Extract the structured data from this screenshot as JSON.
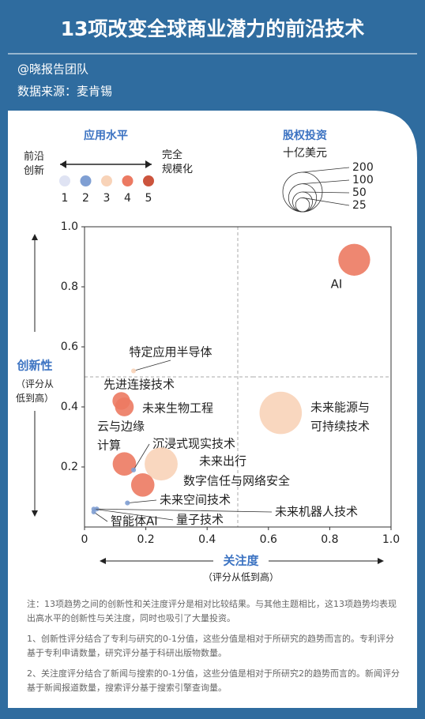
{
  "header": {
    "title": "13项改变全球商业潜力的前沿技术",
    "author": "@晓报告团队",
    "source": "数据来源：麦肯锡"
  },
  "chart_data": {
    "type": "bubble",
    "color_legend": {
      "title": "应用水平",
      "low": "前沿\n创新",
      "high": "完全\n规模化",
      "levels": [
        1,
        2,
        3,
        4,
        5
      ],
      "colors": [
        "#dfe3f3",
        "#7f9fd3",
        "#f8d3b8",
        "#ec7a62",
        "#cc543d"
      ]
    },
    "size_legend": {
      "title": "股权投资",
      "unit": "十亿美元",
      "values": [
        200,
        100,
        50,
        25
      ]
    },
    "x_label": "关注度",
    "x_sublabel": "（评分从低到高）",
    "y_label": "创新性",
    "y_sublabel": "（评分从\n低到高）",
    "xlim": [
      0,
      1
    ],
    "ylim": [
      0,
      1
    ],
    "xticks": [
      0,
      0.2,
      0.4,
      0.6,
      0.8,
      {
        "value": 1,
        "label": "1.0"
      }
    ],
    "yticks": [
      0.2,
      0.4,
      0.6,
      0.8,
      {
        "value": 1,
        "label": "1.0"
      }
    ],
    "points": [
      {
        "label": [
          "AI"
        ],
        "x": 0.88,
        "y": 0.89,
        "size": 130,
        "level": 4
      },
      {
        "label": [
          "特定应用半导体"
        ],
        "x": 0.16,
        "y": 0.52,
        "size": 3,
        "level": 3
      },
      {
        "label": [
          "先进连接技术"
        ],
        "x": 0.12,
        "y": 0.42,
        "size": 40,
        "level": 4
      },
      {
        "label": [
          "未来生物工程"
        ],
        "x": 0.13,
        "y": 0.4,
        "size": 45,
        "level": 4
      },
      {
        "label": [
          "未来能源与",
          "可持续技术"
        ],
        "x": 0.64,
        "y": 0.38,
        "size": 230,
        "level": 3
      },
      {
        "label": [
          "云与边缘",
          "计算"
        ],
        "x": 0.13,
        "y": 0.21,
        "size": 70,
        "level": 4
      },
      {
        "label": [
          "沉浸式现实技术"
        ],
        "x": 0.16,
        "y": 0.19,
        "size": 3,
        "level": 2
      },
      {
        "label": [
          "未来出行"
        ],
        "x": 0.25,
        "y": 0.21,
        "size": 140,
        "level": 3
      },
      {
        "label": [
          "数字信任与网络安全"
        ],
        "x": 0.19,
        "y": 0.14,
        "size": 70,
        "level": 4
      },
      {
        "label": [
          "未来空间技术"
        ],
        "x": 0.14,
        "y": 0.08,
        "size": 3,
        "level": 2
      },
      {
        "label": [
          "未来机器人技术"
        ],
        "x": 0.04,
        "y": 0.06,
        "size": 3,
        "level": 2
      },
      {
        "label": [
          "量子技术"
        ],
        "x": 0.03,
        "y": 0.06,
        "size": 2,
        "level": 2
      },
      {
        "label": [
          "智能体AI"
        ],
        "x": 0.03,
        "y": 0.05,
        "size": 2,
        "level": 2
      }
    ]
  },
  "notes": [
    "注：13项趋势之间的创新性和关注度评分是相对比较结果。与其他主题相比，这13项趋势均表现出高水平的创新性与关注度，同时也吸引了大量投资。",
    "1、创新性评分结合了专利与研究的0-1分值，这些分值是相对于所研究的趋势而言的。专利评分基于专利申请数量，研究评分基于科研出版物数量。",
    "2、关注度评分结合了新闻与搜索的0-1分值，这些分值是相对于所研究2的趋势而言的。新闻评分基于新闻报道数量，搜索评分基于搜索引擎查询量。"
  ]
}
